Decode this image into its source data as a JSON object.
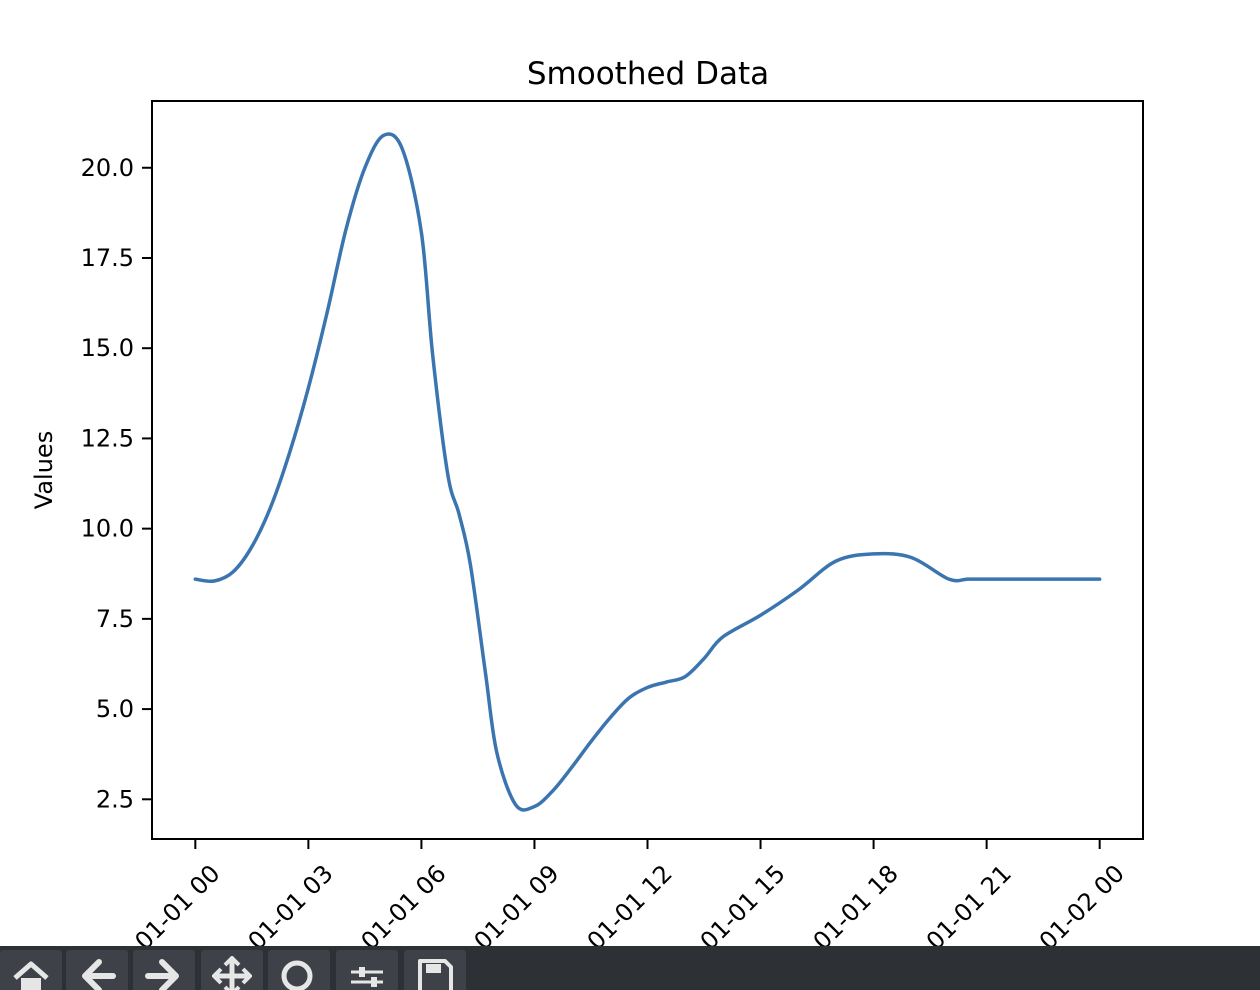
{
  "chart_data": {
    "type": "line",
    "title": "Smoothed Data",
    "xlabel": "",
    "ylabel": "Values",
    "x_ticks": [
      "01-01 00",
      "01-01 03",
      "01-01 06",
      "01-01 09",
      "01-01 12",
      "01-01 15",
      "01-01 18",
      "01-01 21",
      "01-02 00"
    ],
    "y_ticks": [
      "2.5",
      "5.0",
      "7.5",
      "10.0",
      "12.5",
      "15.0",
      "17.5",
      "20.0"
    ],
    "xlim_hours": [
      -1.15,
      25.15
    ],
    "ylim": [
      1.4,
      21.85
    ],
    "grid": false,
    "legend": "none",
    "line_color": "#3a75b0",
    "series": [
      {
        "x_hours": [
          0,
          0.5,
          1,
          1.5,
          2,
          2.5,
          3,
          3.5,
          4,
          4.5,
          5,
          5.5,
          6,
          6.3,
          6.7,
          7,
          7.3,
          7.7,
          8,
          8.5,
          9,
          9.5,
          10,
          10.5,
          11,
          11.5,
          12,
          12.5,
          13,
          13.5,
          14,
          15,
          16,
          17,
          18,
          19,
          20,
          20.5,
          21,
          21.5,
          22,
          23,
          24
        ],
        "values": [
          8.6,
          8.55,
          8.8,
          9.5,
          10.6,
          12.1,
          13.9,
          16.0,
          18.3,
          20.0,
          20.9,
          20.5,
          18.2,
          14.8,
          11.5,
          10.4,
          9.0,
          6.0,
          3.8,
          2.35,
          2.3,
          2.75,
          3.4,
          4.1,
          4.75,
          5.3,
          5.6,
          5.75,
          5.9,
          6.4,
          7.0,
          7.6,
          8.3,
          9.1,
          9.3,
          9.2,
          8.6,
          8.6,
          8.6,
          8.6,
          8.6,
          8.6,
          8.6
        ]
      }
    ]
  },
  "toolbar": {
    "buttons": [
      "home-icon",
      "back-arrow-icon",
      "forward-arrow-icon",
      "pan-icon",
      "zoom-icon",
      "configure-subplots-icon",
      "save-icon"
    ]
  }
}
